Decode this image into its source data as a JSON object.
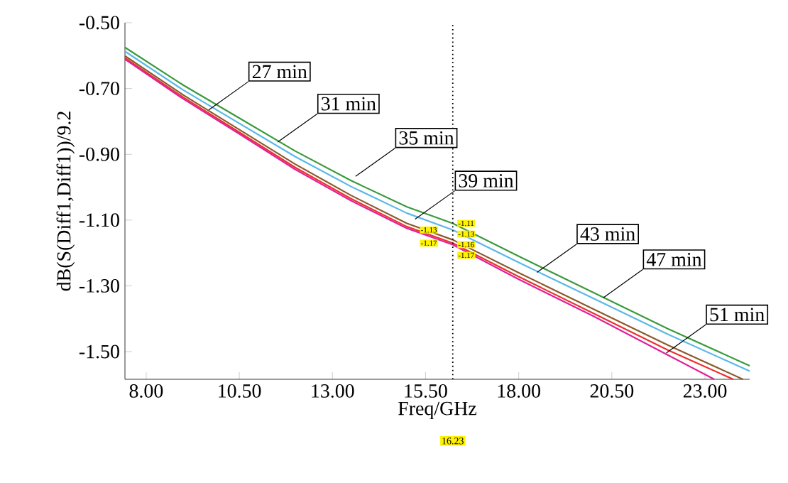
{
  "chart_data": {
    "type": "line",
    "xlabel": "Freq/GHz",
    "ylabel": "dB(S(Diff1,Diff1))/9.2",
    "xlim": [
      7.43,
      24.2
    ],
    "ylim": [
      -1.584,
      -0.5
    ],
    "xticks": [
      {
        "value": 8,
        "label": "8.00"
      },
      {
        "value": 10.5,
        "label": "10.50"
      },
      {
        "value": 13,
        "label": "13.00"
      },
      {
        "value": 15.5,
        "label": "15.50"
      },
      {
        "value": 18,
        "label": "18.00"
      },
      {
        "value": 20.5,
        "label": "20.50"
      },
      {
        "value": 23,
        "label": "23.00"
      }
    ],
    "yticks": [
      {
        "value": -0.5,
        "label": "-0.50"
      },
      {
        "value": -0.7,
        "label": "-0.70"
      },
      {
        "value": -0.9,
        "label": "-0.90"
      },
      {
        "value": -1.1,
        "label": "-1.10"
      },
      {
        "value": -1.3,
        "label": "-1.30"
      },
      {
        "value": -1.5,
        "label": "-1.50"
      }
    ],
    "grid": false,
    "line_style": "solid",
    "marker": "none",
    "series": [
      {
        "color": "#3a9a3a",
        "x": [
          7.43,
          9,
          10.5,
          12,
          13.5,
          15,
          16.23,
          18,
          20,
          22,
          24.2
        ],
        "values": [
          -0.575,
          -0.69,
          -0.79,
          -0.89,
          -0.98,
          -1.06,
          -1.11,
          -1.21,
          -1.32,
          -1.43,
          -1.543
        ]
      },
      {
        "color": "#5bb8e8",
        "x": [
          7.43,
          9,
          10.5,
          12,
          13.5,
          15,
          16.23,
          18,
          20,
          22,
          24.2
        ],
        "values": [
          -0.587,
          -0.705,
          -0.806,
          -0.907,
          -0.998,
          -1.079,
          -1.13,
          -1.229,
          -1.338,
          -1.447,
          -1.559
        ]
      },
      {
        "color": "#8b5a2b",
        "x": [
          7.43,
          9,
          10.5,
          12,
          13.5,
          15,
          16.23,
          18,
          20,
          22,
          24.02
        ],
        "values": [
          -0.601,
          -0.72,
          -0.825,
          -0.93,
          -1.025,
          -1.11,
          -1.16,
          -1.26,
          -1.37,
          -1.48,
          -1.584
        ]
      },
      {
        "color": "#e8322f",
        "x": [
          7.43,
          9,
          10.5,
          12,
          13.5,
          15,
          16.23,
          18,
          20,
          22,
          23.76
        ],
        "values": [
          -0.607,
          -0.727,
          -0.833,
          -0.94,
          -1.035,
          -1.12,
          -1.17,
          -1.272,
          -1.383,
          -1.495,
          -1.584
        ]
      },
      {
        "color": "#e0209a",
        "x": [
          7.43,
          9,
          10.5,
          12,
          13.5,
          15,
          16.23,
          18,
          20,
          22,
          23.25
        ],
        "values": [
          -0.611,
          -0.732,
          -0.838,
          -0.946,
          -1.041,
          -1.125,
          -1.175,
          -1.28,
          -1.392,
          -1.51,
          -1.584
        ]
      }
    ],
    "ref_lines": [
      {
        "axis": "x",
        "value": 16.23,
        "label": "16.23",
        "color": "#000000",
        "line_style": "dotted"
      }
    ],
    "annotations": [
      {
        "text": "27 min",
        "x": 9.68,
        "y": -0.765
      },
      {
        "text": "31 min",
        "x": 11.53,
        "y": -0.863
      },
      {
        "text": "35 min",
        "x": 13.62,
        "y": -0.967
      },
      {
        "text": "39 min",
        "x": 15.22,
        "y": -1.097
      },
      {
        "text": "43 min",
        "x": 18.49,
        "y": -1.259
      },
      {
        "text": "47 min",
        "x": 20.27,
        "y": -1.336
      },
      {
        "text": "51 min",
        "x": 21.96,
        "y": -1.504
      },
      {
        "text": "-1.13",
        "x": 15.95,
        "y": -1.13
      },
      {
        "text": "-1.17",
        "x": 15.95,
        "y": -1.17
      },
      {
        "text": "-1.11",
        "x": 16.23,
        "y": -1.11
      },
      {
        "text": "-1.13",
        "x": 16.23,
        "y": -1.13
      },
      {
        "text": "-1.16",
        "x": 16.23,
        "y": -1.16
      },
      {
        "text": "-1.17",
        "x": 16.23,
        "y": -1.17
      }
    ]
  }
}
